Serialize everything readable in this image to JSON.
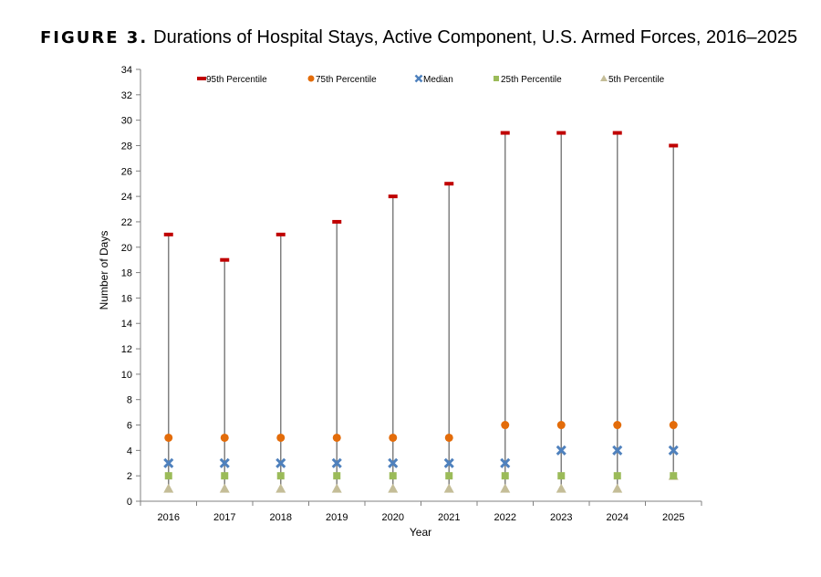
{
  "title": {
    "prefix": "FIGURE 3.",
    "text": "Durations of Hospital Stays, Active Component, U.S. Armed Forces, 2016–2025"
  },
  "chart_data": {
    "type": "scatter",
    "xlabel": "Year",
    "ylabel": "Number of Days",
    "ylim": [
      0,
      34
    ],
    "y_ticks": [
      0,
      2,
      4,
      6,
      8,
      10,
      12,
      14,
      16,
      18,
      20,
      22,
      24,
      26,
      28,
      30,
      32,
      34
    ],
    "grid": false,
    "legend_position": "top",
    "categories": [
      "2016",
      "2017",
      "2018",
      "2019",
      "2020",
      "2021",
      "2022",
      "2023",
      "2024",
      "2025"
    ],
    "series": [
      {
        "name": "95th Percentile",
        "marker": "dash",
        "color": "#c00000",
        "values": [
          21,
          19,
          21,
          22,
          24,
          25,
          29,
          29,
          29,
          28
        ]
      },
      {
        "name": "75th Percentile",
        "marker": "circle",
        "color": "#e36c0a",
        "values": [
          5,
          5,
          5,
          5,
          5,
          5,
          6,
          6,
          6,
          6
        ]
      },
      {
        "name": "Median",
        "marker": "x",
        "color": "#4f81bd",
        "values": [
          3,
          3,
          3,
          3,
          3,
          3,
          3,
          4,
          4,
          4
        ]
      },
      {
        "name": "25th Percentile",
        "marker": "square",
        "color": "#9bbb59",
        "values": [
          2,
          2,
          2,
          2,
          2,
          2,
          2,
          2,
          2,
          2
        ]
      },
      {
        "name": "5th Percentile",
        "marker": "triangle",
        "color": "#c4bd97",
        "values": [
          1,
          1,
          1,
          1,
          1,
          1,
          1,
          1,
          1,
          2
        ]
      }
    ],
    "range_line_color": "#808080"
  }
}
